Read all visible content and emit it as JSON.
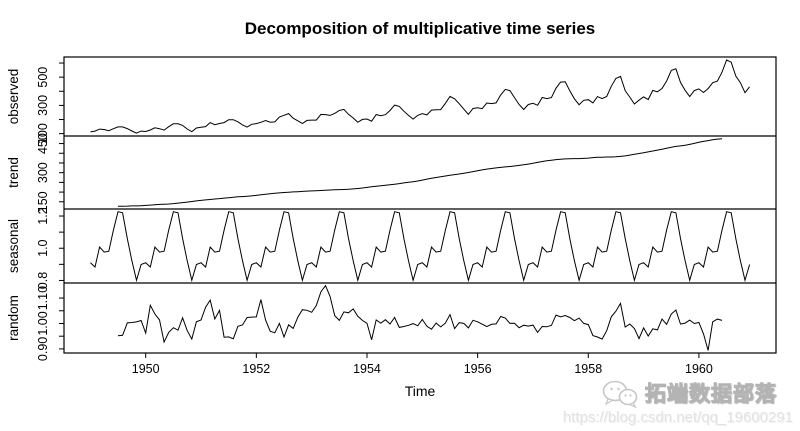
{
  "watermark": {
    "brand": "拓端数据部落",
    "url": "https://blog.csdn.net/qq_19600291",
    "logo": "wechat-chat-bubbles-icon"
  },
  "chart_data": {
    "type": "line",
    "title": "Decomposition of multiplicative time series",
    "xlabel": "Time",
    "x_start": 1949,
    "frequency": 12,
    "x_ticks": [
      1950,
      1952,
      1954,
      1956,
      1958,
      1960
    ],
    "x_tick_labels": [
      "1950",
      "1952",
      "1954",
      "1956",
      "1958",
      "1960"
    ],
    "line_color": "#000000",
    "grid": false,
    "panels": [
      {
        "name": "observed",
        "label": "observed",
        "ticks": [
          100,
          200,
          300,
          400,
          500,
          600
        ],
        "tick_labels": [
          "100",
          "",
          "300",
          "",
          "500",
          ""
        ],
        "values": [
          112,
          118,
          132,
          129,
          121,
          135,
          148,
          148,
          136,
          119,
          104,
          118,
          115,
          126,
          141,
          135,
          125,
          149,
          170,
          170,
          158,
          133,
          114,
          140,
          145,
          150,
          178,
          163,
          172,
          178,
          199,
          199,
          184,
          162,
          146,
          166,
          171,
          180,
          193,
          181,
          183,
          218,
          230,
          242,
          209,
          191,
          172,
          194,
          196,
          196,
          236,
          235,
          229,
          243,
          264,
          272,
          237,
          211,
          180,
          201,
          204,
          188,
          235,
          227,
          234,
          264,
          302,
          293,
          259,
          229,
          203,
          229,
          242,
          233,
          267,
          269,
          270,
          315,
          364,
          347,
          312,
          274,
          237,
          278,
          284,
          277,
          317,
          313,
          318,
          374,
          413,
          405,
          355,
          306,
          271,
          306,
          315,
          301,
          356,
          348,
          355,
          422,
          465,
          467,
          404,
          347,
          305,
          336,
          340,
          318,
          362,
          348,
          363,
          435,
          491,
          505,
          404,
          359,
          310,
          337,
          360,
          342,
          406,
          396,
          420,
          472,
          548,
          559,
          463,
          407,
          362,
          405,
          417,
          391,
          419,
          461,
          472,
          535,
          622,
          606,
          508,
          461,
          390,
          432
        ]
      },
      {
        "name": "trend",
        "label": "trend",
        "ticks": [
          150,
          200,
          250,
          300,
          350,
          400,
          450
        ],
        "tick_labels": [
          "150",
          "",
          "",
          "300",
          "",
          "",
          "450"
        ],
        "values": [
          null,
          null,
          null,
          null,
          null,
          null,
          126.79,
          127.25,
          127.96,
          128.58,
          129.0,
          129.75,
          131.25,
          133.08,
          134.92,
          136.42,
          137.42,
          138.75,
          140.92,
          143.17,
          145.71,
          148.42,
          151.54,
          154.71,
          157.13,
          159.54,
          161.83,
          164.13,
          166.67,
          169.08,
          171.25,
          173.58,
          175.46,
          176.83,
          178.04,
          180.17,
          183.13,
          186.21,
          189.04,
          191.29,
          193.58,
          195.83,
          198.04,
          199.38,
          201.0,
          202.21,
          203.63,
          205.21,
          206.25,
          207.17,
          208.33,
          209.58,
          210.92,
          211.83,
          212.67,
          213.25,
          214.5,
          216.5,
          218.5,
          220.92,
          224.0,
          227.25,
          230.08,
          232.25,
          234.92,
          237.71,
          240.5,
          243.96,
          247.17,
          250.25,
          253.5,
          257.13,
          261.83,
          266.67,
          271.13,
          275.21,
          278.92,
          282.67,
          286.75,
          290.33,
          293.33,
          297.13,
          301.0,
          305.46,
          309.96,
          314.42,
          318.63,
          321.75,
          324.5,
          327.08,
          329.54,
          331.83,
          334.46,
          337.54,
          340.54,
          344.08,
          348.25,
          353.0,
          357.63,
          361.38,
          364.5,
          367.17,
          369.46,
          371.21,
          372.17,
          372.42,
          372.75,
          373.63,
          375.25,
          377.92,
          379.5,
          380.0,
          380.71,
          380.96,
          381.83,
          383.67,
          386.5,
          390.33,
          394.71,
          398.63,
          402.54,
          407.17,
          411.63,
          416.33,
          420.5,
          425.5,
          430.71,
          435.13,
          437.71,
          440.96,
          445.83,
          450.63,
          456.33,
          461.38,
          465.21,
          469.33,
          472.75,
          475.04,
          null,
          null,
          null,
          null,
          null,
          null
        ]
      },
      {
        "name": "seasonal",
        "label": "seasonal",
        "ticks": [
          0.8,
          0.9,
          1.0,
          1.1,
          1.2
        ],
        "tick_labels": [
          "0.8",
          "",
          "1.0",
          "",
          "1.2"
        ],
        "monthly_factors": [
          0.9102,
          0.8836,
          1.0074,
          0.9759,
          0.9814,
          1.1128,
          1.2266,
          1.2199,
          1.0605,
          0.9218,
          0.8012,
          0.8988
        ],
        "repeat_years": 12
      },
      {
        "name": "random",
        "label": "random",
        "ticks": [
          0.9,
          0.95,
          1.0,
          1.05,
          1.1
        ],
        "tick_labels": [
          "0.90",
          "",
          "1.00",
          "",
          "1.10"
        ],
        "derived_from": "observed / (trend * seasonal)"
      }
    ]
  }
}
